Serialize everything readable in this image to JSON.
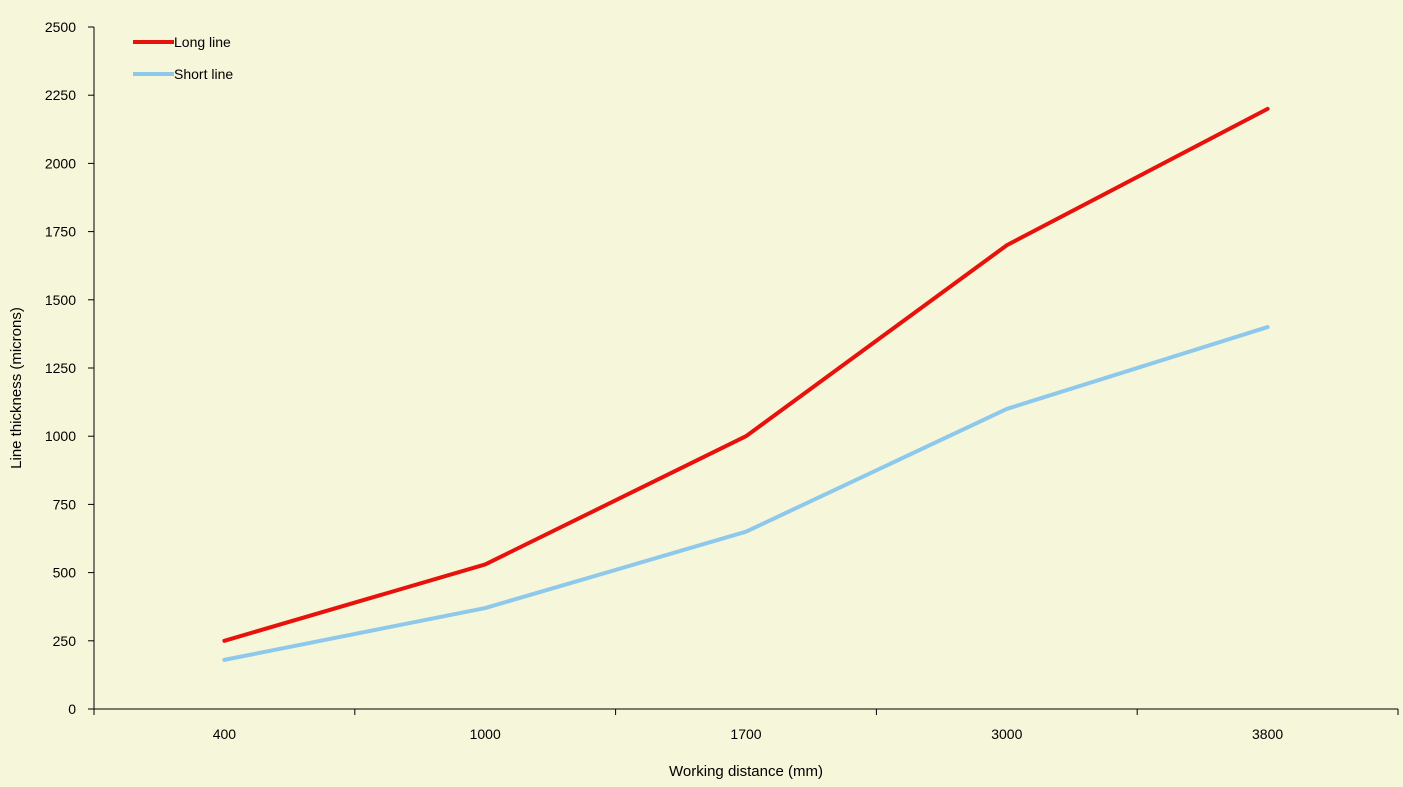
{
  "chart_data": {
    "type": "line",
    "title": "",
    "xlabel": "Working distance (mm)",
    "ylabel": "Line thickness (microns)",
    "categories": [
      "400",
      "1000",
      "1700",
      "3000",
      "3800"
    ],
    "ylim": [
      0,
      2500
    ],
    "yticks": [
      0,
      250,
      500,
      750,
      1000,
      1250,
      1500,
      1750,
      2000,
      2250,
      2500
    ],
    "grid": false,
    "legend_position": "top-left",
    "series": [
      {
        "name": "Long line",
        "color": "#e8120c",
        "values": [
          250,
          530,
          1000,
          1700,
          2200
        ]
      },
      {
        "name": "Short line",
        "color": "#8ec9eb",
        "values": [
          180,
          370,
          650,
          1100,
          1400
        ]
      }
    ]
  }
}
